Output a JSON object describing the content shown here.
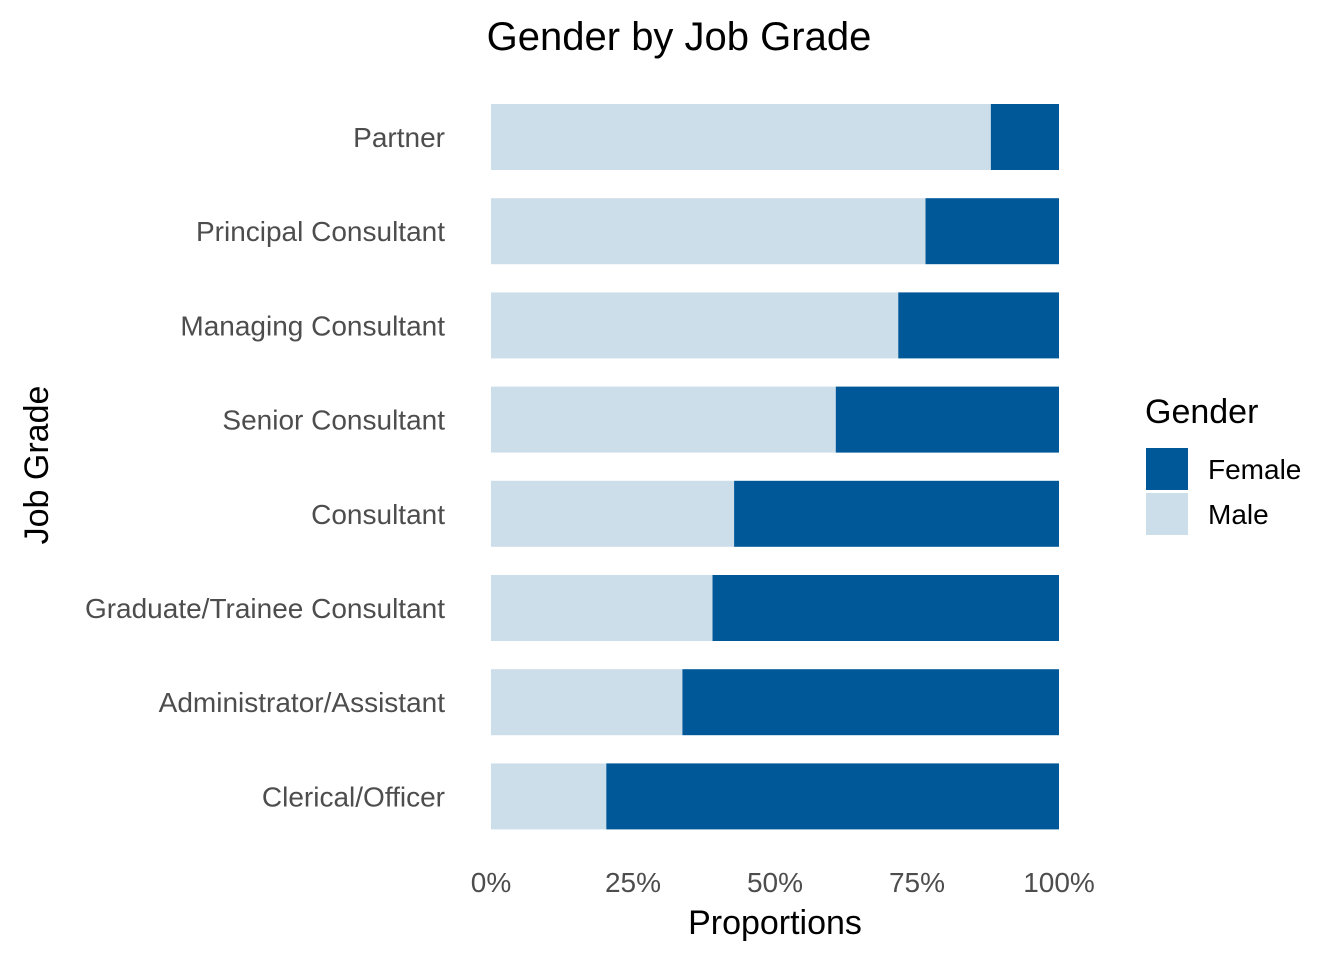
{
  "chart_data": {
    "type": "bar",
    "orientation": "horizontal",
    "stacked": true,
    "title": "Gender by Job Grade",
    "xlabel": "Proportions",
    "ylabel": "Job Grade",
    "xlim": [
      0,
      1
    ],
    "x_ticks": [
      0,
      0.25,
      0.5,
      0.75,
      1
    ],
    "x_tick_labels": [
      "0%",
      "25%",
      "50%",
      "75%",
      "100%"
    ],
    "categories": [
      "Partner",
      "Principal Consultant",
      "Managing Consultant",
      "Senior Consultant",
      "Consultant",
      "Graduate/Trainee Consultant",
      "Administrator/Assistant",
      "Clerical/Officer"
    ],
    "series": [
      {
        "name": "Male",
        "color": "#cddeeb",
        "values": [
          0.88,
          0.765,
          0.717,
          0.607,
          0.428,
          0.39,
          0.337,
          0.203
        ]
      },
      {
        "name": "Female",
        "color": "#005899",
        "values": [
          0.12,
          0.235,
          0.283,
          0.393,
          0.572,
          0.61,
          0.663,
          0.797
        ]
      }
    ],
    "legend": {
      "title": "Gender",
      "position": "right",
      "entries": [
        "Female",
        "Male"
      ]
    },
    "grid": false
  }
}
